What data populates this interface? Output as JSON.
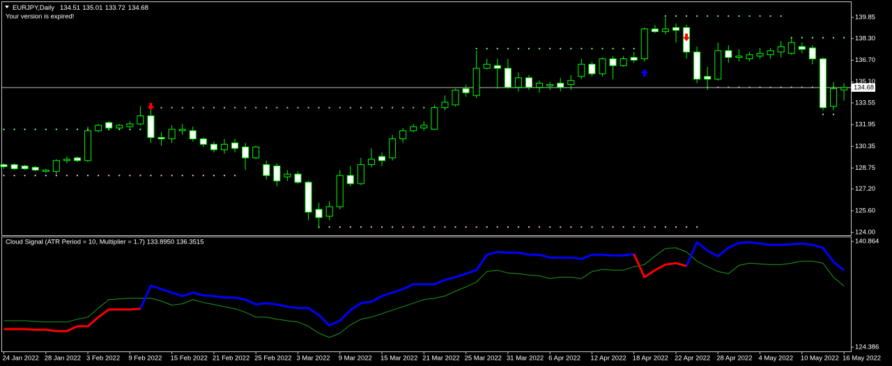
{
  "chart_data": [
    {
      "type": "candlestick",
      "symbol_title": "EURJPY,Daily",
      "notice": "Your version is expired!",
      "categories": [
        "24 Jan 2022",
        null,
        null,
        null,
        "28 Jan 2022",
        null,
        null,
        null,
        "3 Feb 2022",
        null,
        null,
        null,
        "9 Feb 2022",
        null,
        null,
        null,
        "15 Feb 2022",
        null,
        null,
        null,
        "21 Feb 2022",
        null,
        null,
        null,
        "25 Feb 2022",
        null,
        null,
        null,
        "3 Mar 2022",
        null,
        null,
        null,
        "9 Mar 2022",
        null,
        null,
        null,
        "15 Mar 2022",
        null,
        null,
        null,
        "21 Mar 2022",
        null,
        null,
        null,
        "25 Mar 2022",
        null,
        null,
        null,
        "31 Mar 2022",
        null,
        null,
        null,
        "6 Apr 2022",
        null,
        null,
        null,
        "12 Apr 2022",
        null,
        null,
        null,
        "18 Apr 2022",
        null,
        null,
        null,
        "22 Apr 2022",
        null,
        null,
        null,
        "28 Apr 2022",
        null,
        null,
        null,
        "4 May 2022",
        null,
        null,
        null,
        "10 May 2022",
        null,
        null,
        null,
        "16 May 2022"
      ],
      "ohlc": [
        {
          "open": 129.0,
          "high": 129.1,
          "low": 128.7,
          "close": 128.85
        },
        {
          "open": 129.0,
          "high": 129.1,
          "low": 128.6,
          "close": 128.7
        },
        {
          "open": 128.9,
          "high": 129.0,
          "low": 128.6,
          "close": 128.7
        },
        {
          "open": 128.8,
          "high": 128.9,
          "low": 128.5,
          "close": 128.6
        },
        {
          "open": 128.5,
          "high": 128.7,
          "low": 128.4,
          "close": 128.6
        },
        {
          "open": 128.5,
          "high": 129.4,
          "low": 128.3,
          "close": 129.3
        },
        {
          "open": 129.3,
          "high": 129.6,
          "low": 129.1,
          "close": 129.4
        },
        {
          "open": 129.5,
          "high": 129.6,
          "low": 129.2,
          "close": 129.3
        },
        {
          "open": 129.3,
          "high": 131.8,
          "low": 129.2,
          "close": 131.5
        },
        {
          "open": 131.5,
          "high": 132.0,
          "low": 131.4,
          "close": 131.9
        },
        {
          "open": 132.1,
          "high": 132.2,
          "low": 131.5,
          "close": 131.7
        },
        {
          "open": 131.7,
          "high": 132.0,
          "low": 131.6,
          "close": 131.9
        },
        {
          "open": 131.8,
          "high": 132.2,
          "low": 131.7,
          "close": 132.0
        },
        {
          "open": 132.0,
          "high": 133.3,
          "low": 131.9,
          "close": 132.6
        },
        {
          "open": 132.6,
          "high": 133.1,
          "low": 130.6,
          "close": 131.0
        },
        {
          "open": 131.0,
          "high": 131.4,
          "low": 130.4,
          "close": 130.9
        },
        {
          "open": 130.9,
          "high": 131.9,
          "low": 130.6,
          "close": 131.6
        },
        {
          "open": 131.5,
          "high": 132.0,
          "low": 131.2,
          "close": 131.6
        },
        {
          "open": 131.5,
          "high": 131.8,
          "low": 130.7,
          "close": 130.9
        },
        {
          "open": 130.9,
          "high": 131.0,
          "low": 130.3,
          "close": 130.5
        },
        {
          "open": 130.5,
          "high": 130.7,
          "low": 129.9,
          "close": 130.1
        },
        {
          "open": 130.1,
          "high": 130.9,
          "low": 129.8,
          "close": 130.5
        },
        {
          "open": 130.6,
          "high": 130.9,
          "low": 129.9,
          "close": 130.2
        },
        {
          "open": 130.3,
          "high": 130.6,
          "low": 128.6,
          "close": 129.5
        },
        {
          "open": 129.5,
          "high": 130.4,
          "low": 129.4,
          "close": 130.3
        },
        {
          "open": 129.0,
          "high": 129.3,
          "low": 127.9,
          "close": 128.2
        },
        {
          "open": 128.9,
          "high": 129.1,
          "low": 127.4,
          "close": 127.8
        },
        {
          "open": 128.1,
          "high": 128.6,
          "low": 127.8,
          "close": 128.3
        },
        {
          "open": 128.3,
          "high": 128.5,
          "low": 127.6,
          "close": 127.7
        },
        {
          "open": 127.7,
          "high": 127.8,
          "low": 124.9,
          "close": 125.5
        },
        {
          "open": 125.7,
          "high": 126.2,
          "low": 124.3,
          "close": 125.1
        },
        {
          "open": 125.2,
          "high": 126.3,
          "low": 124.9,
          "close": 125.9
        },
        {
          "open": 125.9,
          "high": 128.6,
          "low": 125.7,
          "close": 128.2
        },
        {
          "open": 128.2,
          "high": 128.9,
          "low": 127.4,
          "close": 127.6
        },
        {
          "open": 127.6,
          "high": 129.5,
          "low": 127.5,
          "close": 129.0
        },
        {
          "open": 129.0,
          "high": 130.2,
          "low": 128.8,
          "close": 129.4
        },
        {
          "open": 129.6,
          "high": 129.9,
          "low": 128.9,
          "close": 129.3
        },
        {
          "open": 129.5,
          "high": 131.2,
          "low": 129.3,
          "close": 130.9
        },
        {
          "open": 130.9,
          "high": 131.7,
          "low": 130.6,
          "close": 131.5
        },
        {
          "open": 131.5,
          "high": 132.0,
          "low": 131.4,
          "close": 131.8
        },
        {
          "open": 131.7,
          "high": 132.2,
          "low": 131.5,
          "close": 131.9
        },
        {
          "open": 131.6,
          "high": 133.4,
          "low": 131.6,
          "close": 133.2
        },
        {
          "open": 133.2,
          "high": 134.1,
          "low": 133.0,
          "close": 133.6
        },
        {
          "open": 133.4,
          "high": 134.6,
          "low": 133.3,
          "close": 134.5
        },
        {
          "open": 134.6,
          "high": 134.9,
          "low": 134.0,
          "close": 134.3
        },
        {
          "open": 134.1,
          "high": 137.4,
          "low": 133.9,
          "close": 136.1
        },
        {
          "open": 136.1,
          "high": 136.8,
          "low": 136.0,
          "close": 136.4
        },
        {
          "open": 136.3,
          "high": 136.8,
          "low": 134.6,
          "close": 136.1
        },
        {
          "open": 136.1,
          "high": 136.8,
          "low": 134.6,
          "close": 134.7
        },
        {
          "open": 134.7,
          "high": 135.8,
          "low": 134.4,
          "close": 135.4
        },
        {
          "open": 135.4,
          "high": 135.6,
          "low": 134.5,
          "close": 134.7
        },
        {
          "open": 134.7,
          "high": 135.2,
          "low": 134.3,
          "close": 135.0
        },
        {
          "open": 134.8,
          "high": 135.1,
          "low": 134.5,
          "close": 134.9
        },
        {
          "open": 135.0,
          "high": 135.4,
          "low": 134.4,
          "close": 134.7
        },
        {
          "open": 134.9,
          "high": 135.6,
          "low": 134.5,
          "close": 135.2
        },
        {
          "open": 135.5,
          "high": 136.8,
          "low": 135.3,
          "close": 136.4
        },
        {
          "open": 136.4,
          "high": 136.6,
          "low": 135.5,
          "close": 135.7
        },
        {
          "open": 135.7,
          "high": 136.9,
          "low": 135.5,
          "close": 136.8
        },
        {
          "open": 136.8,
          "high": 137.0,
          "low": 135.3,
          "close": 136.3
        },
        {
          "open": 136.3,
          "high": 137.0,
          "low": 136.2,
          "close": 136.8
        },
        {
          "open": 136.9,
          "high": 137.3,
          "low": 136.5,
          "close": 136.7
        },
        {
          "open": 136.8,
          "high": 139.1,
          "low": 136.6,
          "close": 139.0
        },
        {
          "open": 139.0,
          "high": 139.3,
          "low": 138.7,
          "close": 138.8
        },
        {
          "open": 138.8,
          "high": 139.85,
          "low": 138.6,
          "close": 139.0
        },
        {
          "open": 139.1,
          "high": 139.4,
          "low": 138.0,
          "close": 138.9
        },
        {
          "open": 139.1,
          "high": 139.3,
          "low": 136.8,
          "close": 137.3
        },
        {
          "open": 137.3,
          "high": 137.7,
          "low": 135.0,
          "close": 135.3
        },
        {
          "open": 135.5,
          "high": 136.2,
          "low": 134.5,
          "close": 135.3
        },
        {
          "open": 135.3,
          "high": 138.0,
          "low": 135.2,
          "close": 137.4
        },
        {
          "open": 137.4,
          "high": 137.8,
          "low": 136.5,
          "close": 136.9
        },
        {
          "open": 136.9,
          "high": 137.5,
          "low": 136.6,
          "close": 137.0
        },
        {
          "open": 136.8,
          "high": 137.3,
          "low": 136.6,
          "close": 137.1
        },
        {
          "open": 137.0,
          "high": 137.6,
          "low": 136.8,
          "close": 137.2
        },
        {
          "open": 137.1,
          "high": 137.6,
          "low": 136.8,
          "close": 137.4
        },
        {
          "open": 137.3,
          "high": 138.1,
          "low": 136.9,
          "close": 137.7
        },
        {
          "open": 137.2,
          "high": 138.3,
          "low": 137.1,
          "close": 138.0
        },
        {
          "open": 137.7,
          "high": 138.0,
          "low": 137.2,
          "close": 137.5
        },
        {
          "open": 137.6,
          "high": 137.8,
          "low": 136.4,
          "close": 136.8
        },
        {
          "open": 136.8,
          "high": 136.9,
          "low": 133.0,
          "close": 133.2
        },
        {
          "open": 133.3,
          "high": 135.1,
          "low": 133.0,
          "close": 134.6
        },
        {
          "open": 134.51,
          "high": 135.01,
          "low": 133.72,
          "close": 134.68
        }
      ],
      "bull_color": "#000000",
      "bear_color": "#ffffff",
      "outline_color": "#00ff00",
      "ylim": [
        123.8,
        140.98
      ],
      "yticks": [
        139.85,
        {
          "value": 138.3,
          "label": "138.30"
        },
        {
          "value": 136.7,
          "label": "136.70"
        },
        {
          "value": 135.1,
          "label": "135.10"
        },
        133.55,
        131.95,
        130.35,
        128.75,
        {
          "value": 127.2,
          "label": "127.20"
        },
        {
          "value": 125.6,
          "label": "125.60"
        },
        {
          "value": 124,
          "label": "124.00"
        }
      ],
      "levels": [
        {
          "from": 0,
          "to": 13,
          "price": 131.6,
          "color": "#7dff7d"
        },
        {
          "from": 14,
          "to": 42,
          "price": 133.2,
          "color": "#7dff7d"
        },
        {
          "from": 45,
          "to": 60,
          "price": 137.55,
          "color": "#7dff7d"
        },
        {
          "from": 63,
          "to": 74,
          "price": 139.95,
          "color": "#7dff7d"
        },
        {
          "from": 75,
          "to": 80,
          "price": 138.35,
          "color": "#7dff7d"
        },
        {
          "from": 0,
          "to": 22,
          "price": 128.2,
          "color": "#ffc0cb"
        },
        {
          "from": 30,
          "to": 66,
          "price": 124.4,
          "color": "#ffc0cb"
        },
        {
          "from": 67,
          "to": 79,
          "price": 134.7,
          "color": "#ffc0cb"
        },
        {
          "from": 78,
          "to": 79,
          "price": 132.7,
          "color": "#ffc0cb"
        }
      ],
      "signals": [
        {
          "index": 14,
          "price": 133.2,
          "direction": "down",
          "color": "#ff0000"
        },
        {
          "index": 65,
          "price": 138.3,
          "direction": "down",
          "color": "#ff0000"
        },
        {
          "index": 61,
          "price": 135.85,
          "direction": "up",
          "color": "#0000ff"
        }
      ]
    },
    {
      "type": "line",
      "title": "Cloud Signal (ATR Period = 10, Multiplier = 1.7) 133.8950 136.3515",
      "ylim": [
        124.386,
        140.864
      ],
      "yticks": [
        140.864,
        124.386
      ],
      "series": [
        {
          "color": "#0000ff",
          "width": 3,
          "values": [
            null,
            null,
            null,
            null,
            null,
            null,
            null,
            null,
            null,
            null,
            null,
            null,
            null,
            130.38,
            133.98,
            133.44,
            132.89,
            132.35,
            132.89,
            132.46,
            132.35,
            132.13,
            132.13,
            131.8,
            131.04,
            131.25,
            131.04,
            130.71,
            130.49,
            130.49,
            129.4,
            127.76,
            128.52,
            130.16,
            131.25,
            131.47,
            132.35,
            132.89,
            133.44,
            134.2,
            134.2,
            134.2,
            134.86,
            135.29,
            135.84,
            136.39,
            138.79,
            139.23,
            139.12,
            139.12,
            138.79,
            138.79,
            138.35,
            138.35,
            138.35,
            138.13,
            138.79,
            138.79,
            138.68,
            138.68,
            138.9,
            null,
            null,
            null,
            null,
            137.04,
            140.75,
            139.44,
            138.57,
            139.88,
            140.65,
            140.75,
            140.54,
            140.32,
            140.32,
            140.43,
            140.54,
            140.32,
            139.88,
            137.7,
            136.3515
          ]
        },
        {
          "color": "#ff0000",
          "width": 3,
          "values": [
            127.21,
            127.21,
            127.21,
            127.11,
            127.11,
            126.89,
            126.89,
            127.65,
            127.65,
            129.07,
            130.27,
            130.27,
            130.27,
            130.38,
            null,
            null,
            null,
            null,
            null,
            null,
            null,
            null,
            null,
            null,
            null,
            null,
            null,
            null,
            null,
            null,
            null,
            null,
            null,
            null,
            null,
            null,
            null,
            null,
            null,
            null,
            null,
            null,
            null,
            null,
            null,
            null,
            null,
            null,
            null,
            null,
            null,
            null,
            null,
            null,
            null,
            null,
            null,
            null,
            null,
            null,
            138.9,
            135.29,
            136.39,
            137.26,
            137.48,
            137.04,
            null,
            null,
            null,
            null,
            null,
            null,
            null,
            null,
            null,
            null,
            null,
            null,
            null,
            null,
            null
          ]
        },
        {
          "color": "#1f9a1f",
          "width": 1,
          "values": [
            128.52,
            128.52,
            128.52,
            128.41,
            128.31,
            128.31,
            128.31,
            128.74,
            129.07,
            130.49,
            131.8,
            131.91,
            132.02,
            132.02,
            132.02,
            131.58,
            130.93,
            131.15,
            131.8,
            131.36,
            131.04,
            130.71,
            130.38,
            129.83,
            129.07,
            129.07,
            128.74,
            128.52,
            128.31,
            127.65,
            126.56,
            125.9,
            126.56,
            127.87,
            128.74,
            129.07,
            129.62,
            130.16,
            130.71,
            131.25,
            131.8,
            132.02,
            132.35,
            133.11,
            133.77,
            134.53,
            136.17,
            136.39,
            135.95,
            135.84,
            135.62,
            135.51,
            135.08,
            135.29,
            135.29,
            135.08,
            136.17,
            136.5,
            136.39,
            136.39,
            136.93,
            137.26,
            138.57,
            139.77,
            139.88,
            139.23,
            137.81,
            136.93,
            136.17,
            135.84,
            137.15,
            137.48,
            137.37,
            137.26,
            137.26,
            137.48,
            137.81,
            137.81,
            137.48,
            135.29,
            133.895
          ]
        }
      ]
    }
  ]
}
